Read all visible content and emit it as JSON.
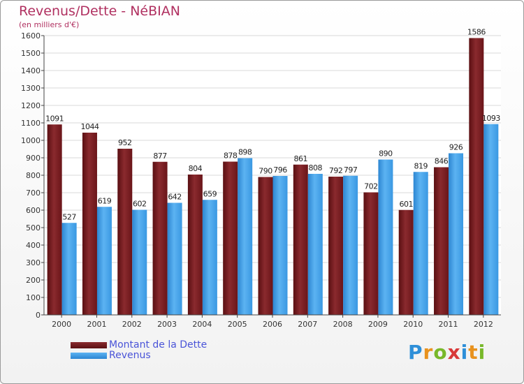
{
  "title": "Revenus/Dette - NéBIAN",
  "subtitle": "(en milliers d'€)",
  "brand": {
    "letters": [
      "P",
      "r",
      "o",
      "x",
      "i",
      "t",
      "i"
    ],
    "colors": [
      "#2e8fd8",
      "#e8921e",
      "#78b82a",
      "#d83838",
      "#2e8fd8",
      "#e8921e",
      "#78b82a"
    ]
  },
  "colors": {
    "dette": "#7a1e22",
    "revenus": "#3f9fe6",
    "title": "#b03060",
    "legend_text": "#4a54d8"
  },
  "chart_data": {
    "type": "bar",
    "categories": [
      "2000",
      "2001",
      "2002",
      "2003",
      "2004",
      "2005",
      "2006",
      "2007",
      "2008",
      "2009",
      "2010",
      "2011",
      "2012"
    ],
    "series": [
      {
        "name": "Montant de la Dette",
        "values": [
          1091,
          1044,
          952,
          877,
          804,
          878,
          790,
          861,
          792,
          702,
          601,
          846,
          1586
        ]
      },
      {
        "name": "Revenus",
        "values": [
          527,
          619,
          602,
          642,
          659,
          898,
          796,
          808,
          797,
          890,
          819,
          926,
          1093
        ]
      }
    ],
    "ylim": [
      0,
      1600
    ],
    "yticks": [
      0,
      100,
      200,
      300,
      400,
      500,
      600,
      700,
      800,
      900,
      1000,
      1100,
      1200,
      1300,
      1400,
      1500,
      1600
    ],
    "grid": true,
    "legend": "bottom-left"
  }
}
